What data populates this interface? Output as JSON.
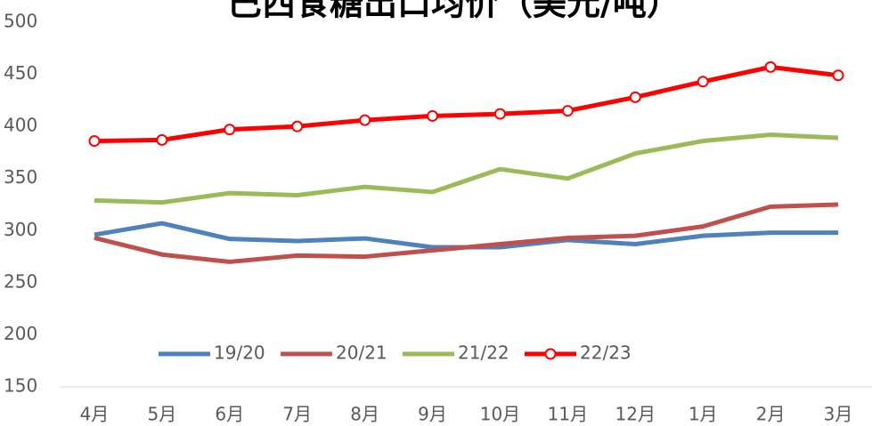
{
  "chart_data": {
    "type": "line",
    "title": "巴西食糖出口均价（美元/吨）",
    "categories": [
      "4月",
      "5月",
      "6月",
      "7月",
      "8月",
      "9月",
      "10月",
      "11月",
      "12月",
      "1月",
      "2月",
      "3月"
    ],
    "series": [
      {
        "name": "19/20",
        "color": "#4f81bd",
        "values": [
          296,
          307,
          292,
          290,
          292.5,
          284,
          284,
          291,
          287,
          295,
          298,
          298
        ]
      },
      {
        "name": "20/21",
        "color": "#c0504d",
        "values": [
          293,
          277,
          270,
          276,
          275,
          281,
          287,
          293,
          295,
          304,
          323,
          325
        ]
      },
      {
        "name": "21/22",
        "color": "#9bbb59",
        "values": [
          329,
          327,
          336,
          334,
          342,
          337,
          359,
          350,
          374,
          386,
          392,
          389
        ]
      },
      {
        "name": "22/23",
        "color": "#ff0000",
        "marker": "circle",
        "values": [
          386,
          387,
          397,
          400,
          406,
          410,
          412,
          415,
          428,
          443,
          457,
          449
        ]
      }
    ],
    "ylim": [
      150,
      500
    ],
    "yticks": [
      150,
      200,
      250,
      300,
      350,
      400,
      450,
      500
    ],
    "grid": false,
    "legend": "bottom"
  }
}
